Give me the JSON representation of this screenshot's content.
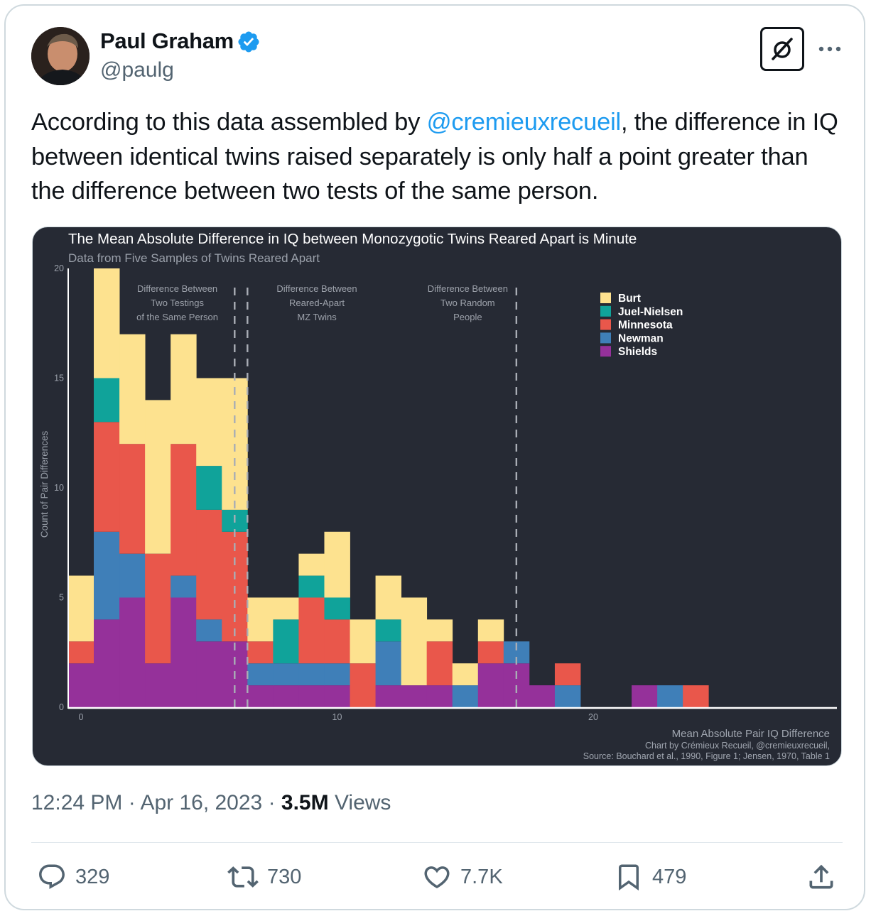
{
  "author": {
    "name": "Paul Graham",
    "handle": "@paulg"
  },
  "tweet": {
    "text_before": "According to this data assembled by ",
    "mention": "@cremieuxrecueil",
    "text_after": ", the difference in IQ between identical twins raised separately is only half a point greater than the difference between two tests of the same person."
  },
  "meta": {
    "time": "12:24 PM",
    "sep1": " · ",
    "date": "Apr 16, 2023",
    "sep2": " · ",
    "views_count": "3.5M",
    "views_label": " Views"
  },
  "actions": {
    "replies": "329",
    "reposts": "730",
    "likes": "7.7K",
    "bookmarks": "479"
  },
  "icons": [
    "verified-badge-icon",
    "grok-icon",
    "more-icon",
    "reply-icon",
    "repost-icon",
    "like-icon",
    "bookmark-icon",
    "share-icon"
  ],
  "colors": {
    "accent": "#1d9bf0",
    "chart_bg": "#262a34"
  },
  "chart_data": {
    "type": "bar",
    "stacked": true,
    "title": "The Mean Absolute Difference in IQ between Monozygotic Twins Reared Apart is Minute",
    "subtitle": "Data from Five Samples of Twins Reared Apart",
    "xlabel": "Mean Absolute Pair IQ Difference",
    "ylabel": "Count of Pair Differences",
    "xlim": [
      -0.5,
      23.5
    ],
    "ylim": [
      0,
      20
    ],
    "x_ticks": [
      0,
      10,
      20
    ],
    "y_ticks": [
      0,
      5,
      10,
      15,
      20
    ],
    "x": [
      -0.5,
      0.5,
      1.5,
      2.5,
      3.5,
      4.5,
      5.5,
      6.5,
      7.5,
      8.5,
      9.5,
      10.5,
      11.5,
      12.5,
      13.5,
      14.5,
      15.5,
      16.5,
      17.5,
      18.5,
      19.5,
      20.5,
      21.5,
      22.5,
      23.5
    ],
    "series": [
      {
        "name": "Shields",
        "color": "#95319a",
        "values": [
          2,
          4,
          5,
          2,
          5,
          3,
          3,
          1,
          1,
          1,
          1,
          0,
          1,
          1,
          1,
          0,
          2,
          2,
          1,
          0,
          0,
          0,
          1,
          0,
          0
        ]
      },
      {
        "name": "Newman",
        "color": "#3f7fb8",
        "values": [
          0,
          4,
          2,
          0,
          1,
          1,
          0,
          1,
          1,
          1,
          1,
          0,
          2,
          0,
          0,
          1,
          0,
          1,
          0,
          1,
          0,
          0,
          0,
          1,
          0
        ]
      },
      {
        "name": "Minnesota",
        "color": "#e9574b",
        "values": [
          1,
          5,
          5,
          5,
          6,
          5,
          5,
          1,
          0,
          3,
          2,
          2,
          0,
          0,
          2,
          0,
          1,
          0,
          0,
          1,
          0,
          0,
          0,
          0,
          1
        ]
      },
      {
        "name": "Juel-Nielsen",
        "color": "#10a39a",
        "values": [
          0,
          2,
          0,
          0,
          0,
          2,
          1,
          0,
          2,
          1,
          1,
          0,
          1,
          0,
          0,
          0,
          0,
          0,
          0,
          0,
          0,
          0,
          0,
          0,
          0
        ]
      },
      {
        "name": "Burt",
        "color": "#fde28f",
        "values": [
          3,
          5,
          5,
          7,
          5,
          4,
          6,
          2,
          1,
          1,
          3,
          2,
          2,
          4,
          1,
          1,
          1,
          0,
          0,
          0,
          0,
          0,
          0,
          0,
          0
        ]
      }
    ],
    "reference_lines": [
      {
        "x": 6,
        "label": [
          "Difference Between",
          "Two Testings",
          "of the Same Person"
        ]
      },
      {
        "x": 6.5,
        "label": [
          "Difference Between",
          "Reared-Apart",
          "MZ Twins"
        ]
      },
      {
        "x": 17,
        "label": [
          "Difference Between",
          "Two Random",
          "People"
        ]
      }
    ],
    "legend_order": [
      "Burt",
      "Juel-Nielsen",
      "Minnesota",
      "Newman",
      "Shields"
    ],
    "legend_position": "top-right",
    "grid": false,
    "caption": [
      "Chart by Crémieux Recueil, @cremieuxrecueil,",
      "Source: Bouchard et al., 1990, Figure 1; Jensen, 1970, Table 1"
    ]
  }
}
